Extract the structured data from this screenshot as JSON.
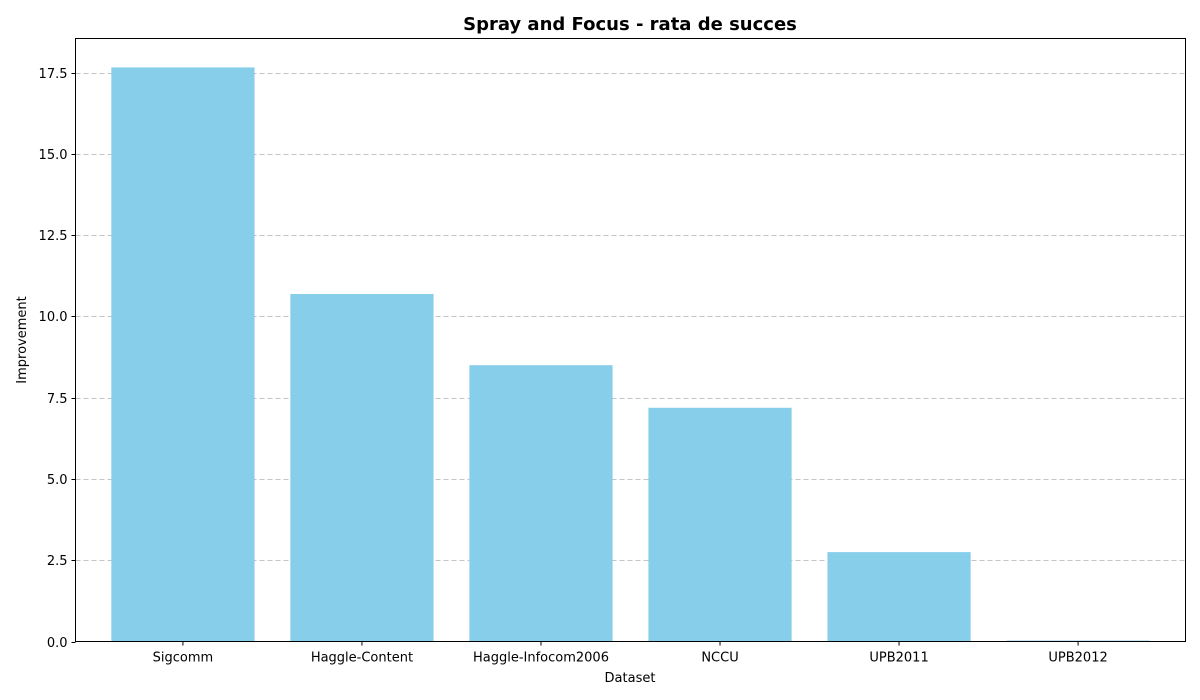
{
  "chart_data": {
    "type": "bar",
    "title": "Spray and Focus - rata de succes",
    "xlabel": "Dataset",
    "ylabel": "Improvement",
    "categories": [
      "Sigcomm",
      "Haggle-Content",
      "Haggle-Infocom2006",
      "NCCU",
      "UPB2011",
      "UPB2012"
    ],
    "values": [
      17.66,
      10.69,
      8.5,
      7.19,
      2.75,
      0.03
    ],
    "ylim": [
      0,
      18.55
    ],
    "yticks": [
      0.0,
      2.5,
      5.0,
      7.5,
      10.0,
      12.5,
      15.0,
      17.5
    ],
    "ytick_labels": [
      "0.0",
      "2.5",
      "5.0",
      "7.5",
      "10.0",
      "12.5",
      "15.0",
      "17.5"
    ],
    "bar_color": "#87ceeb",
    "grid": "y-dashed",
    "legend": "none"
  }
}
